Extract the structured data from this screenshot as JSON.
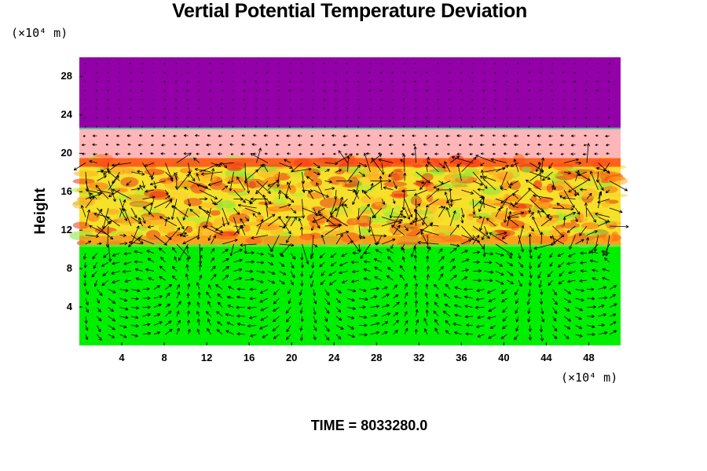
{
  "chart_data": {
    "type": "heatmap",
    "title": "Vertial Potential Temperature Deviation",
    "ylabel": "Height",
    "y_unit": "(×10⁴ m)",
    "x_unit": "(×10⁴ m)",
    "xlim": [
      0,
      51
    ],
    "ylim": [
      0,
      30
    ],
    "x_ticks": [
      "4",
      "8",
      "12",
      "16",
      "20",
      "24",
      "28",
      "32",
      "36",
      "40",
      "44",
      "48"
    ],
    "y_ticks": [
      "4",
      "8",
      "12",
      "16",
      "20",
      "24",
      "28"
    ],
    "layers": [
      {
        "name": "lower",
        "y_from": 0,
        "y_to": 10.5,
        "color": "#00ee00"
      },
      {
        "name": "middle",
        "y_from": 10.5,
        "y_to": 19.5,
        "color": "#f5e02a"
      },
      {
        "name": "upper",
        "y_from": 19.5,
        "y_to": 22.6,
        "color": "#ffb6b8"
      },
      {
        "name": "top",
        "y_from": 22.6,
        "y_to": 30,
        "color": "#9300a8"
      }
    ],
    "grid": false,
    "footer": "TIME = 8033280.0"
  }
}
